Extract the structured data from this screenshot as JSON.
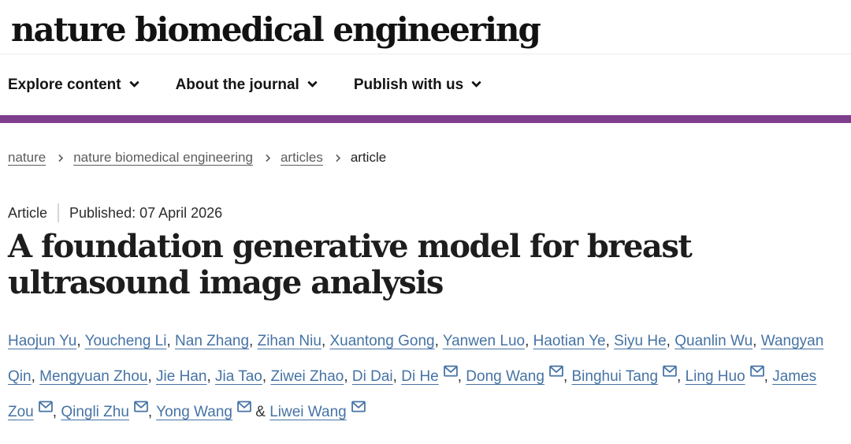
{
  "brand": {
    "logo_text": "nature biomedical engineering",
    "accent_color": "#7d3e8c"
  },
  "nav": {
    "items": [
      {
        "label": "Explore content"
      },
      {
        "label": "About the journal"
      },
      {
        "label": "Publish with us"
      }
    ]
  },
  "breadcrumb": {
    "items": [
      {
        "label": "nature",
        "link": true
      },
      {
        "label": "nature biomedical engineering",
        "link": true
      },
      {
        "label": "articles",
        "link": true
      },
      {
        "label": "article",
        "link": false
      }
    ]
  },
  "article": {
    "type_label": "Article",
    "published": "Published: 07 April 2026",
    "title": "A foundation generative model for breast ultrasound image analysis"
  },
  "authors": {
    "link_color": "#4673a5",
    "separator": ",",
    "last_separator": "&",
    "list": [
      {
        "name": "Haojun Yu",
        "email": false
      },
      {
        "name": "Youcheng Li",
        "email": false
      },
      {
        "name": "Nan Zhang",
        "email": false
      },
      {
        "name": "Zihan Niu",
        "email": false
      },
      {
        "name": "Xuantong Gong",
        "email": false
      },
      {
        "name": "Yanwen Luo",
        "email": false
      },
      {
        "name": "Haotian Ye",
        "email": false
      },
      {
        "name": "Siyu He",
        "email": false
      },
      {
        "name": "Quanlin Wu",
        "email": false
      },
      {
        "name": "Wangyan Qin",
        "email": false
      },
      {
        "name": "Mengyuan Zhou",
        "email": false
      },
      {
        "name": "Jie Han",
        "email": false
      },
      {
        "name": "Jia Tao",
        "email": false
      },
      {
        "name": "Ziwei Zhao",
        "email": false
      },
      {
        "name": "Di Dai",
        "email": false
      },
      {
        "name": "Di He",
        "email": true
      },
      {
        "name": "Dong Wang",
        "email": true
      },
      {
        "name": "Binghui Tang",
        "email": true
      },
      {
        "name": "Ling Huo",
        "email": true
      },
      {
        "name": "James Zou",
        "email": true
      },
      {
        "name": "Qingli Zhu",
        "email": true
      },
      {
        "name": "Yong Wang",
        "email": true
      },
      {
        "name": "Liwei Wang",
        "email": true
      }
    ]
  }
}
